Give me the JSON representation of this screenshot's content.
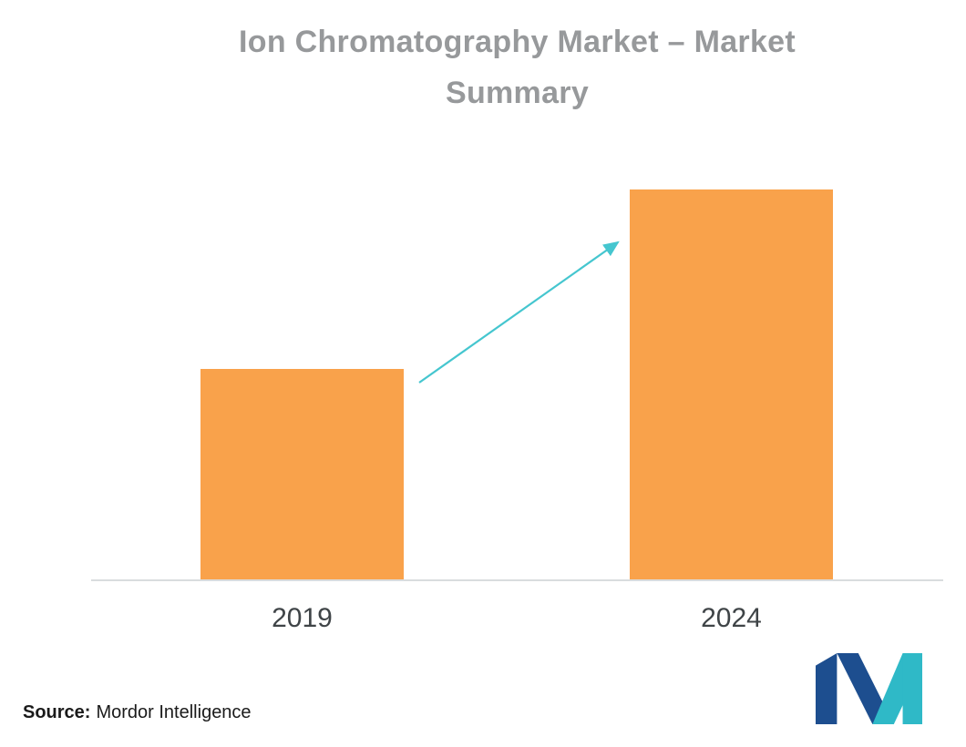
{
  "title": {
    "lines": [
      "Ion Chromatography Market – Market",
      "Summary"
    ]
  },
  "chart_data": {
    "type": "bar",
    "title": "Ion Chromatography Market – Market Summary",
    "categories": [
      "2019",
      "2024"
    ],
    "values": [
      54,
      100
    ],
    "xlabel": "",
    "ylabel": "",
    "ylim": [
      0,
      100
    ],
    "grid": false,
    "legend": false,
    "annotations": [
      "upward growth arrow from top of 2019 bar to top of 2024 bar"
    ]
  },
  "source": {
    "label": "Source:",
    "name": "Mordor Intelligence"
  },
  "logo": {
    "name": "Mordor Intelligence logo"
  },
  "colors": {
    "bar": "#F9A24B",
    "arrow": "#45C6CF",
    "title_text": "#97999B",
    "axis_line": "#D9DCDE",
    "tick_text": "#3F4447",
    "source_text": "#1A1A1A",
    "logo_navy": "#1D4E8F",
    "logo_teal": "#2FB9C7"
  }
}
